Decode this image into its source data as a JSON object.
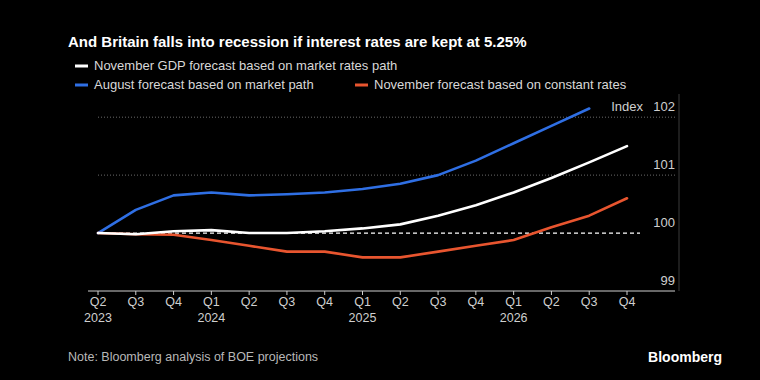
{
  "chart_data": {
    "type": "line",
    "title": "And Britain falls into recession if interest rates are kept at 5.25%",
    "ylabel": "Index",
    "note": "Note: Bloomberg analysis of BOE projections",
    "source": "Bloomberg",
    "categories": [
      "Q2 2023",
      "Q3",
      "Q4",
      "Q1 2024",
      "Q2",
      "Q3",
      "Q4",
      "Q1 2025",
      "Q2",
      "Q3",
      "Q4",
      "Q1 2026",
      "Q2",
      "Q3",
      "Q4"
    ],
    "series": [
      {
        "name": "November GDP forecast based on market rates path",
        "color": "#ffffff",
        "values": [
          100,
          99.98,
          100.03,
          100.05,
          100.0,
          100.0,
          100.03,
          100.08,
          100.15,
          100.3,
          100.48,
          100.7,
          100.95,
          101.22,
          101.5
        ]
      },
      {
        "name": "August forecast based on market path",
        "color": "#2f6fe4",
        "values": [
          100,
          100.4,
          100.65,
          100.7,
          100.65,
          100.67,
          100.7,
          100.76,
          100.85,
          101.0,
          101.25,
          101.55,
          101.85,
          102.15,
          null
        ]
      },
      {
        "name": "November forecast based on constant rates",
        "color": "#e8552f",
        "values": [
          100,
          99.98,
          99.97,
          99.88,
          99.78,
          99.68,
          99.68,
          99.58,
          99.58,
          99.68,
          99.78,
          99.88,
          100.1,
          100.3,
          100.6
        ]
      }
    ],
    "ylim": [
      99,
      102.4
    ],
    "yticks": [
      99,
      100,
      101,
      102
    ],
    "grid": true
  }
}
